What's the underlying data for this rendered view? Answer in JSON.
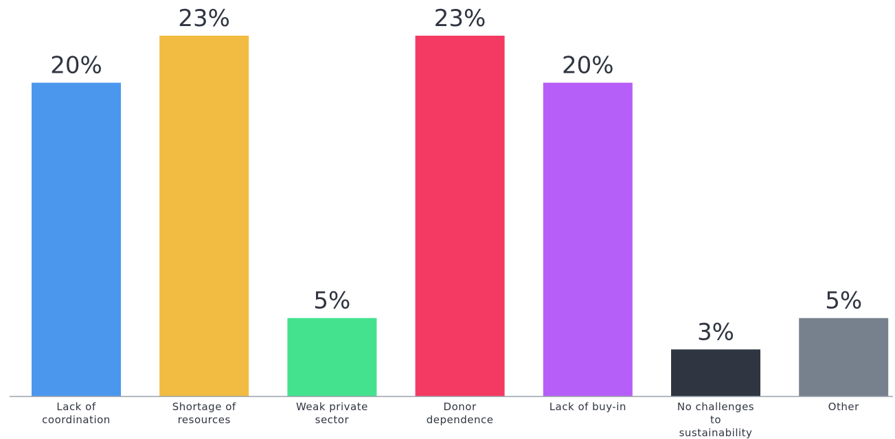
{
  "chart_data": {
    "type": "bar",
    "categories": [
      [
        "Lack of",
        "coordination"
      ],
      [
        "Shortage of",
        "resources"
      ],
      [
        "Weak private",
        "sector"
      ],
      [
        "Donor",
        "dependence"
      ],
      [
        "Lack of buy-in"
      ],
      [
        "No challenges",
        "to",
        "sustainability"
      ],
      [
        "Other"
      ]
    ],
    "values": [
      20,
      23,
      5,
      23,
      20,
      3,
      5
    ],
    "value_labels": [
      "20%",
      "23%",
      "5%",
      "23%",
      "20%",
      "3%",
      "5%"
    ],
    "colors": [
      "#4c97ee",
      "#f2bb41",
      "#44e28f",
      "#f43a62",
      "#b65ef8",
      "#2f3541",
      "#77818e"
    ],
    "title": "",
    "xlabel": "",
    "ylabel": "",
    "ylim": [
      0,
      23
    ],
    "grid": false,
    "legend": "none"
  }
}
